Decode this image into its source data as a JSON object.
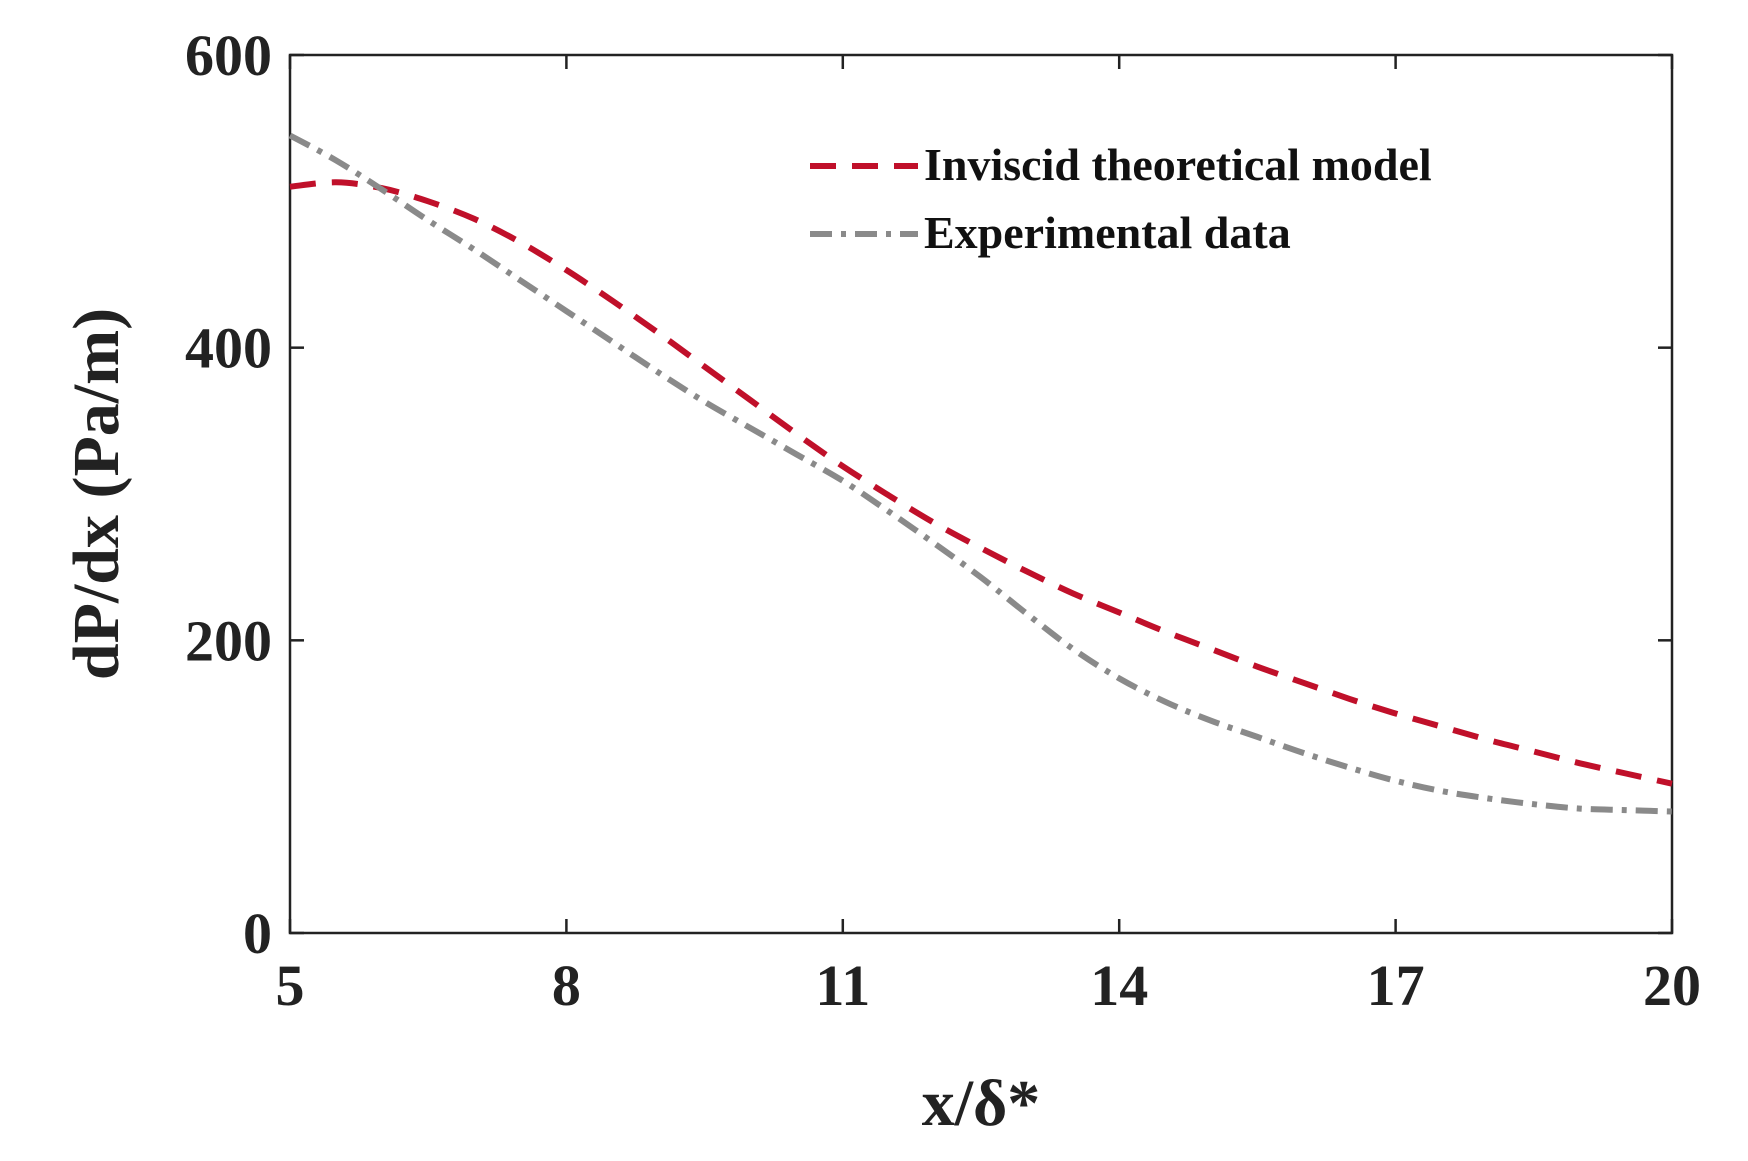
{
  "chart_data": {
    "type": "line",
    "title": "",
    "xlabel": "x/δ*",
    "ylabel": "dP/dx (Pa/m)",
    "xlim": [
      5,
      20
    ],
    "ylim": [
      0,
      600
    ],
    "xticks": [
      5,
      8,
      11,
      14,
      17,
      20
    ],
    "yticks": [
      0,
      200,
      400,
      600
    ],
    "xtick_labels": [
      "5",
      "8",
      "11",
      "14",
      "17",
      "20"
    ],
    "ytick_labels": [
      "0",
      "200",
      "400",
      "600"
    ],
    "grid": false,
    "legend_position": "top-right",
    "series": [
      {
        "name": "Inviscid theoretical model",
        "color": "#c0102a",
        "style": "dashed",
        "x": [
          5.0,
          5.5,
          6.0,
          6.5,
          7.0,
          7.5,
          8.0,
          8.5,
          9.0,
          9.5,
          10.0,
          10.5,
          11.0,
          11.5,
          12.0,
          12.5,
          13.0,
          13.5,
          14.0,
          14.5,
          15.0,
          15.5,
          16.0,
          16.5,
          17.0,
          17.5,
          18.0,
          18.5,
          19.0,
          19.5,
          20.0
        ],
        "y": [
          510,
          513,
          509,
          500,
          488,
          472,
          453,
          432,
          410,
          387,
          364,
          341,
          319,
          299,
          280,
          263,
          247,
          232,
          219,
          206,
          194,
          182,
          171,
          160,
          150,
          141,
          132,
          124,
          116,
          109,
          102
        ]
      },
      {
        "name": "Experimental data",
        "color": "#8a8a8a",
        "style": "dashdot",
        "x": [
          5.0,
          5.5,
          6.0,
          6.5,
          7.0,
          7.5,
          8.0,
          8.5,
          9.0,
          9.5,
          10.0,
          10.5,
          11.0,
          11.5,
          12.0,
          12.5,
          13.0,
          13.5,
          14.0,
          14.5,
          15.0,
          15.5,
          16.0,
          16.5,
          17.0,
          17.5,
          18.0,
          18.5,
          19.0,
          19.5,
          20.0
        ],
        "y": [
          545,
          528,
          508,
          487,
          467,
          446,
          425,
          404,
          383,
          363,
          345,
          327,
          309,
          288,
          266,
          243,
          218,
          194,
          174,
          158,
          145,
          134,
          123,
          113,
          104,
          97,
          92,
          88,
          85,
          84,
          83
        ]
      }
    ]
  }
}
